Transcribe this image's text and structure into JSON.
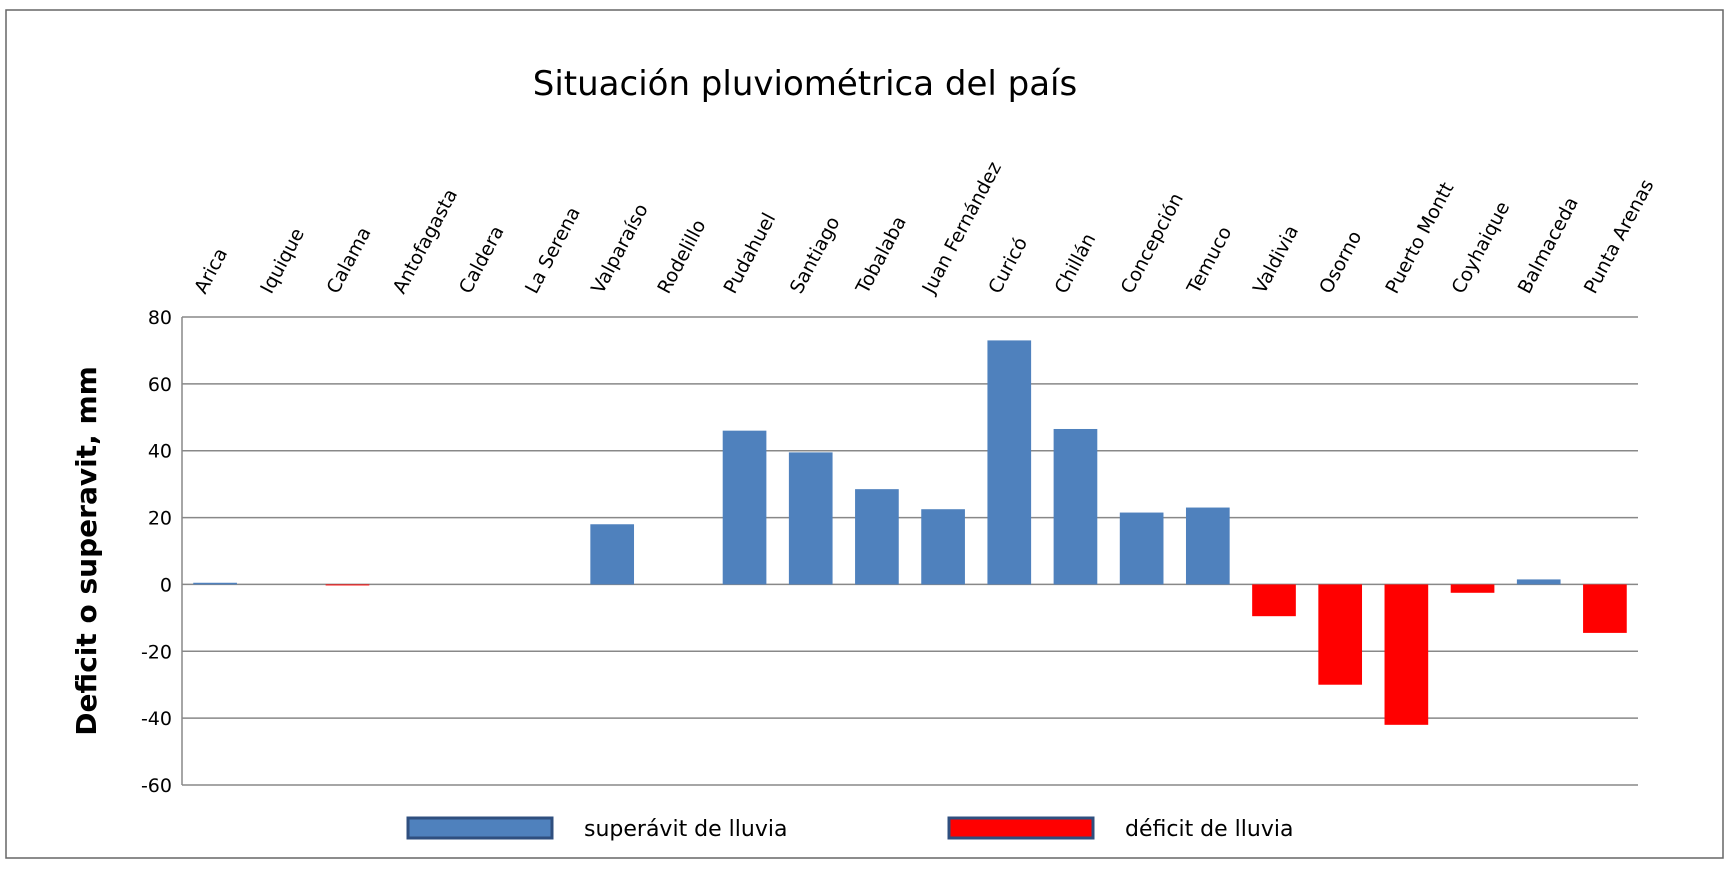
{
  "chart_data": {
    "type": "bar",
    "title": "Situación pluviométrica del país",
    "y_label": "Deficit o superavit, mm",
    "categories": [
      "Arica",
      "Iquique",
      "Calama",
      "Antofagasta",
      "Caldera",
      "La Serena",
      "Valparaíso",
      "Rodelillo",
      "Pudahuel",
      "Santiago",
      "Tobalaba",
      "Juan Fernández",
      "Curicó",
      "Chillán",
      "Concepción",
      "Temuco",
      "Valdivia",
      "Osorno",
      "Puerto Montt",
      "Coyhaique",
      "Balmaceda",
      "Punta Arenas"
    ],
    "series": [
      {
        "name": "superávit de lluvia",
        "color": "#4f81bd",
        "values": [
          0.5,
          0,
          null,
          0,
          0,
          0,
          18,
          0,
          46,
          39.5,
          28.5,
          22.5,
          73,
          46.5,
          21.5,
          23,
          null,
          null,
          null,
          null,
          1.5,
          null
        ]
      },
      {
        "name": "déficit de lluvia",
        "color": "#ff0000",
        "values": [
          null,
          null,
          -0.3,
          null,
          null,
          null,
          null,
          null,
          null,
          null,
          null,
          null,
          null,
          null,
          null,
          null,
          -9.5,
          -30,
          -42,
          -2.5,
          null,
          -14.5
        ]
      }
    ],
    "ylim": [
      -60,
      80
    ],
    "yticks": [
      -60,
      -40,
      -20,
      0,
      20,
      40,
      60,
      80
    ],
    "grid": true
  }
}
